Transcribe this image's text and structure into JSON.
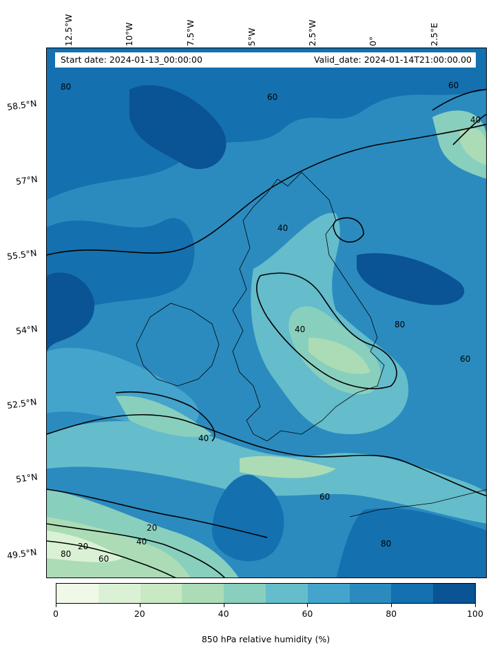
{
  "map": {
    "start_date": "Start date: 2024-01-13_00:00:00",
    "valid_date": "Valid_date: 2024-01-14T21:00:00.00",
    "lon_labels": [
      "12.5°W",
      "10°W",
      "7.5°W",
      "5°W",
      "2.5°W",
      "0°",
      "2.5°E"
    ],
    "lat_labels": [
      "58.5°N",
      "57°N",
      "55.5°N",
      "54°N",
      "52.5°N",
      "51°N",
      "49.5°N"
    ],
    "contour_labels": [
      "80",
      "60",
      "40",
      "20"
    ],
    "region": "British Isles and surrounding seas"
  },
  "colorbar": {
    "title": "850 hPa relative humidity (%)",
    "tick_labels": [
      "0",
      "20",
      "40",
      "60",
      "80",
      "100"
    ],
    "levels": [
      0,
      10,
      20,
      30,
      40,
      50,
      60,
      70,
      80,
      90,
      100
    ],
    "colors": [
      "#f0f9e8",
      "#dbf1d5",
      "#c8e9c3",
      "#abdcb6",
      "#89cfbe",
      "#65bccb",
      "#44a4cc",
      "#2b8bbe",
      "#1470ae",
      "#0a5395"
    ]
  }
}
